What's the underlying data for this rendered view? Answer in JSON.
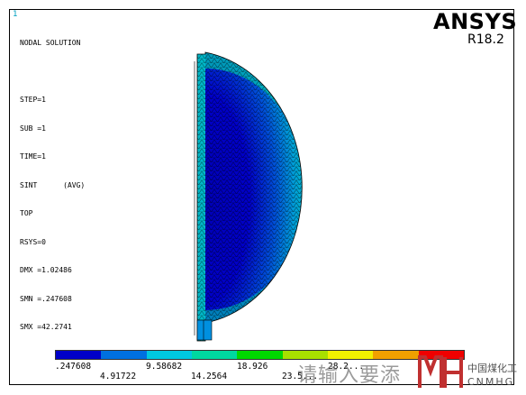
{
  "window_number": "1",
  "info_lines": [
    "NODAL SOLUTION",
    "",
    "STEP=1",
    "SUB =1",
    "TIME=1",
    "SINT      (AVG)",
    "TOP",
    "RSYS=0",
    "DMX =1.02486",
    "SMN =.247608",
    "SMX =42.2741"
  ],
  "brand": {
    "logo": "ANSYS",
    "version": "R18.2"
  },
  "legend": {
    "colors": [
      "#0000c8",
      "#0070e0",
      "#00c8e0",
      "#00d8a0",
      "#00d800",
      "#a8e000",
      "#f0f000",
      "#f0a000",
      "#f00000"
    ],
    "labels_top": [
      ".247608",
      "9.58682",
      "18.926",
      "28.2..."
    ],
    "labels_bottom": [
      "4.91722",
      "14.2564",
      "23.5..."
    ]
  },
  "watermark": {
    "text": "请输入要添",
    "company_cn": "中国煤化工",
    "company_en": "CNMHG"
  }
}
